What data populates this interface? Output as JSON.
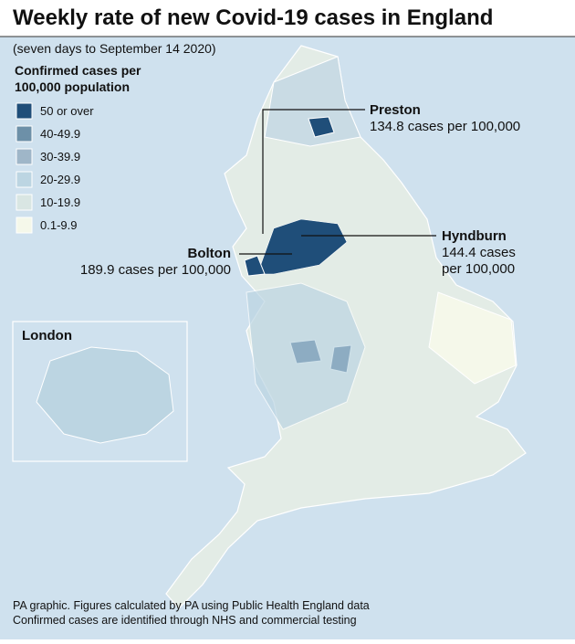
{
  "header": {
    "title": "Weekly rate of new Covid-19 cases in England",
    "subtitle": "(seven days to September 14 2020)"
  },
  "legend": {
    "title_lines": [
      "Confirmed cases per",
      "100,000 population"
    ],
    "items": [
      {
        "label": "50 or over",
        "color": "#1f4e79"
      },
      {
        "label": "40-49.9",
        "color": "#6d90a8"
      },
      {
        "label": "30-39.9",
        "color": "#9fb6c8"
      },
      {
        "label": "20-29.9",
        "color": "#bcd5e2"
      },
      {
        "label": "10-19.9",
        "color": "#d9e6e3"
      },
      {
        "label": "0.1-9.9",
        "color": "#f5f8ea"
      }
    ]
  },
  "annotations": [
    {
      "name": "Preston",
      "lines": [
        "134.8 cases per 100,000"
      ]
    },
    {
      "name": "Hyndburn",
      "lines": [
        "144.4 cases",
        "per 100,000"
      ]
    },
    {
      "name": "Bolton",
      "lines": [
        "189.9 cases per 100,000"
      ]
    }
  ],
  "inset": {
    "label": "London"
  },
  "footer": {
    "lines": [
      "PA graphic. Figures calculated by PA using Public Health England data",
      "Confirmed cases are identified through NHS and commercial testing"
    ]
  }
}
